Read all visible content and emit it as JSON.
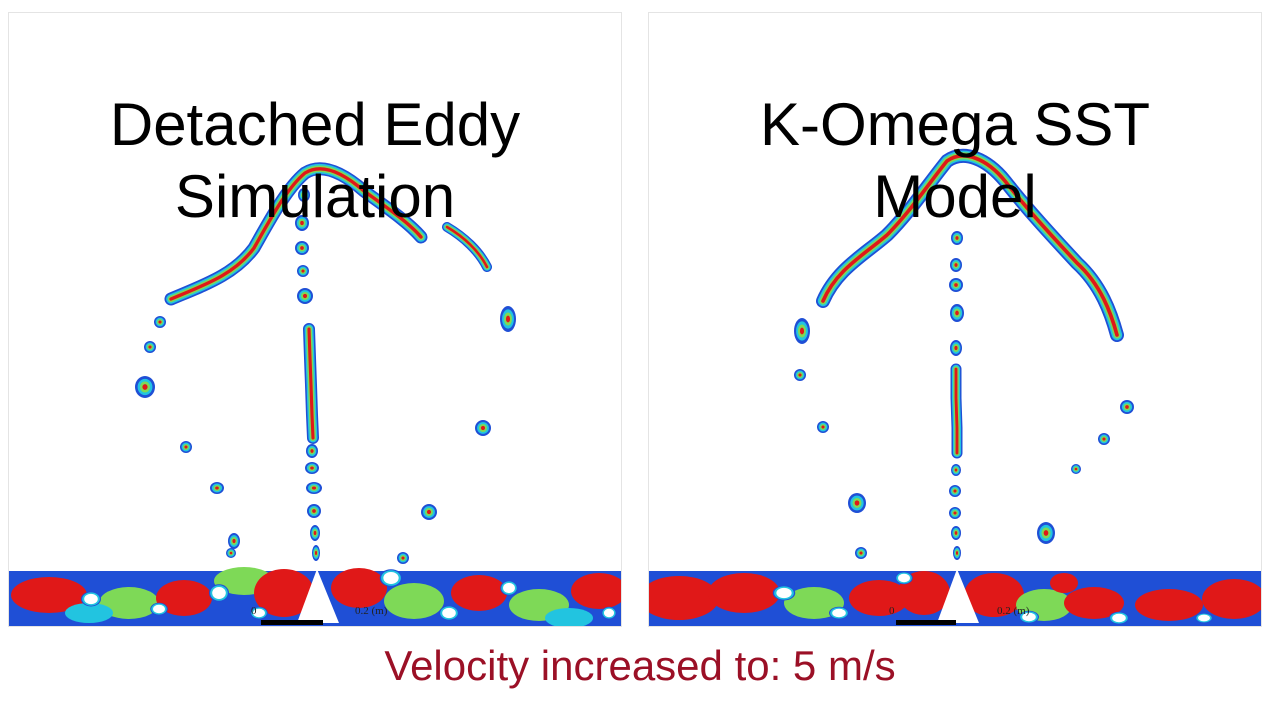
{
  "panels": [
    {
      "title_line1": "Detached Eddy",
      "title_line2": "Simulation",
      "scale_start": "0",
      "scale_end": "0.2 (m)"
    },
    {
      "title_line1": "K-Omega SST",
      "title_line2": "Model",
      "scale_start": "0",
      "scale_end": "0.2 (m)"
    }
  ],
  "caption": "Velocity increased to: 5 m/s",
  "colors": {
    "caption": "#9b1026",
    "contour_outer": "#1f4fd6",
    "contour_mid": "#22c4e0",
    "contour_inner": "#7ed957",
    "contour_core": "#e01818"
  }
}
